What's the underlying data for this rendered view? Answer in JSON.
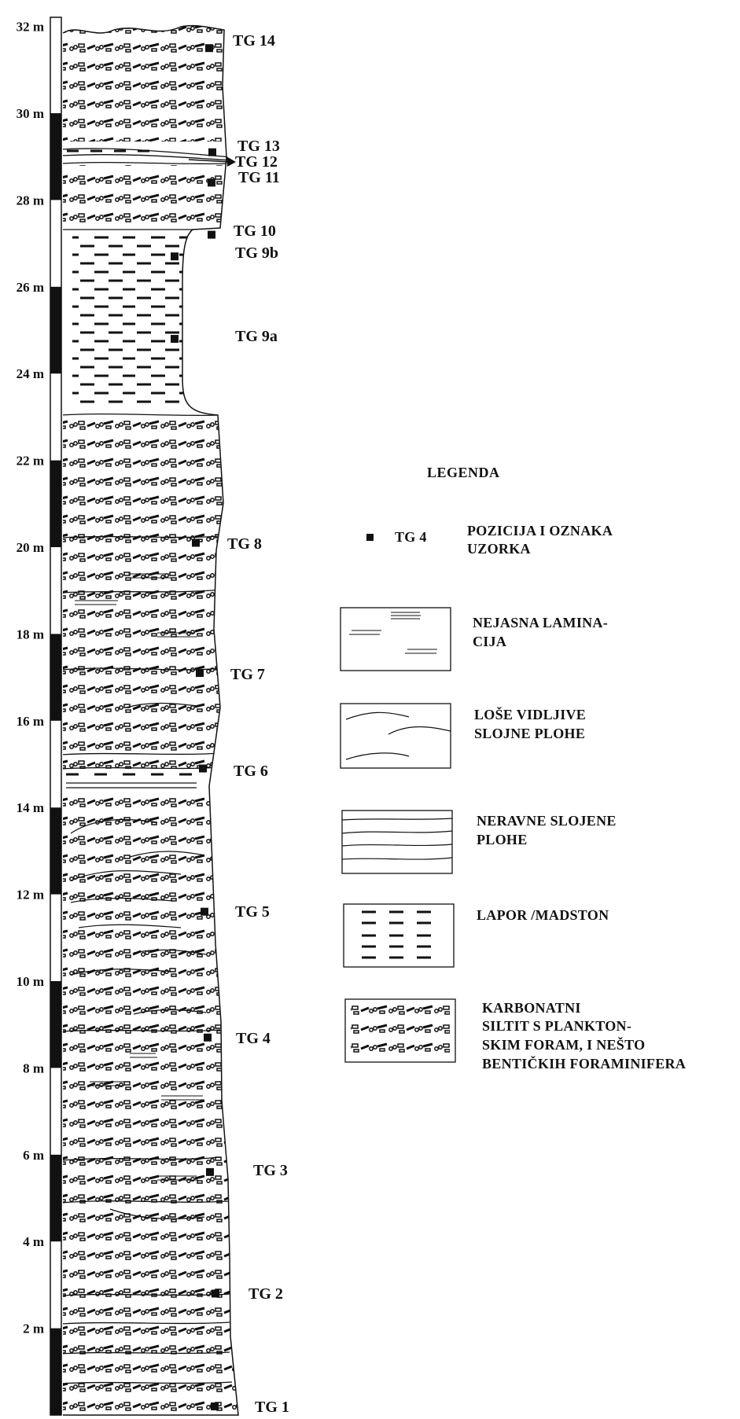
{
  "scale": {
    "unit": "m",
    "ticks": [
      "2 m",
      "4 m",
      "6 m",
      "8 m",
      "10 m",
      "12 m",
      "14 m",
      "16 m",
      "18 m",
      "20 m",
      "22 m",
      "24 m",
      "26 m",
      "28 m",
      "30 m",
      "32 m"
    ]
  },
  "samples": [
    {
      "id": "tg1",
      "label": "TG 1",
      "depth_m": 0.2
    },
    {
      "id": "tg2",
      "label": "TG 2",
      "depth_m": 2.8
    },
    {
      "id": "tg3",
      "label": "TG 3",
      "depth_m": 5.6
    },
    {
      "id": "tg4",
      "label": "TG 4",
      "depth_m": 8.7
    },
    {
      "id": "tg5",
      "label": "TG 5",
      "depth_m": 11.6
    },
    {
      "id": "tg6",
      "label": "TG 6",
      "depth_m": 14.9
    },
    {
      "id": "tg7",
      "label": "TG 7",
      "depth_m": 17.1
    },
    {
      "id": "tg8",
      "label": "TG 8",
      "depth_m": 20.1
    },
    {
      "id": "tg9a",
      "label": "TG 9a",
      "depth_m": 24.8
    },
    {
      "id": "tg9b",
      "label": "TG 9b",
      "depth_m": 26.7
    },
    {
      "id": "tg10",
      "label": "TG 10",
      "depth_m": 27.2
    },
    {
      "id": "tg11",
      "label": "TG 11",
      "depth_m": 28.4
    },
    {
      "id": "tg12",
      "label": "TG 12",
      "depth_m": 28.8
    },
    {
      "id": "tg13",
      "label": "TG 13",
      "depth_m": 29.1
    },
    {
      "id": "tg14",
      "label": "TG 14",
      "depth_m": 31.5
    }
  ],
  "legend": {
    "title": "LEGENDA",
    "sample_example": "TG 4",
    "items": [
      {
        "id": "sample",
        "lines": [
          "POZICIJA I OZNAKA",
          "UZORKA"
        ]
      },
      {
        "id": "lamin",
        "lines": [
          "NEJASNA LAMINA-",
          "CIJA"
        ]
      },
      {
        "id": "planes",
        "lines": [
          "LOŠE VIDLJIVE",
          "SLOJNE PLOHE"
        ]
      },
      {
        "id": "uneven",
        "lines": [
          "NERAVNE SLOJENE",
          "PLOHE"
        ]
      },
      {
        "id": "marl",
        "lines": [
          "LAPOR /MADSTON"
        ]
      },
      {
        "id": "siltite",
        "lines": [
          "KARBONATNI",
          "SILTIT S PLANKTON-",
          "SKIM FORAM, I NEŠTO",
          "BENTIČKIH FORAMINIFERA"
        ]
      }
    ]
  }
}
